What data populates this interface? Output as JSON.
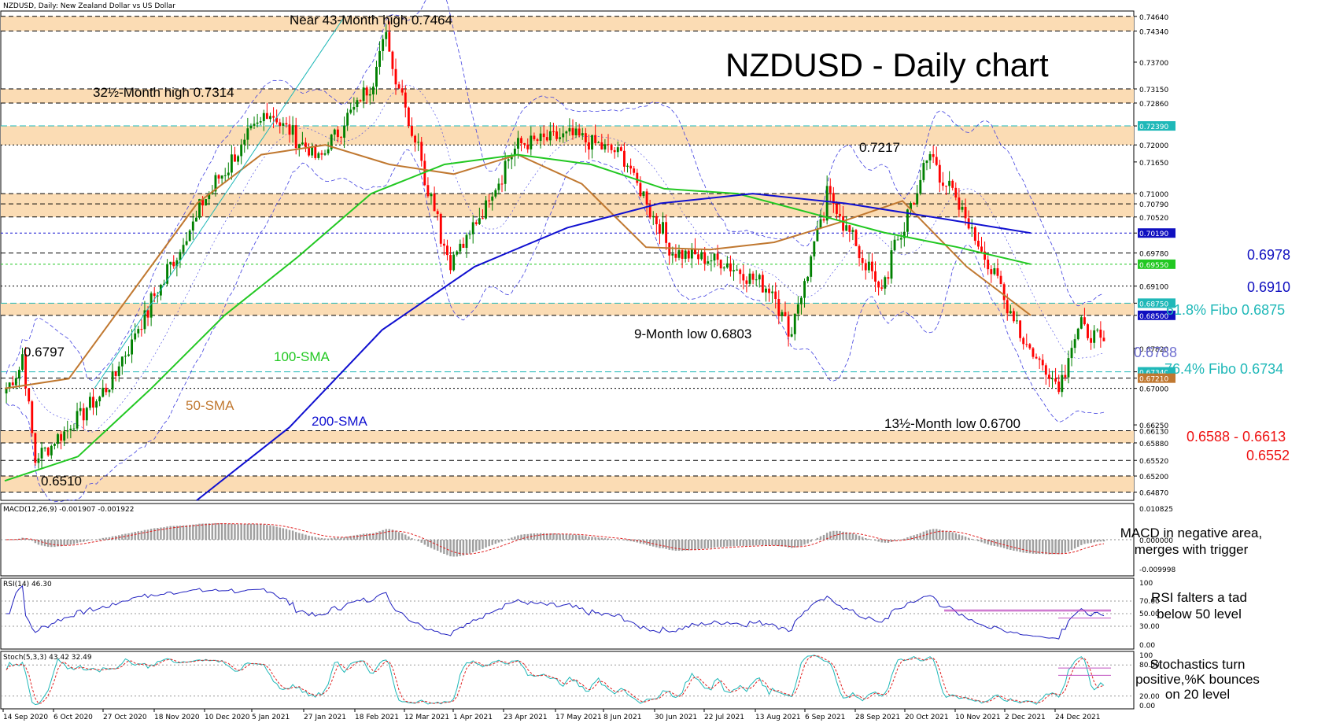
{
  "header": "NZDUSD, Daily:  New Zealand Dollar vs US Dollar",
  "title": "NZDUSD - Daily chart",
  "colors": {
    "orange_zone": "#fbdcb4",
    "bull": "#008000",
    "bear": "#ff0000",
    "sma50": "#c07830",
    "sma100": "#22c822",
    "sma200": "#1010d0",
    "bollinger": "#4040e0",
    "fibo": "#1fb8b8",
    "level_red": "#ee1111",
    "level_blue": "#1010c0"
  },
  "main_panel": {
    "price_labels": [
      "0.74640",
      "0.74340",
      "0.73700",
      "0.73150",
      "0.72860",
      "0.72390",
      "0.72000",
      "0.71650",
      "0.71000",
      "0.70790",
      "0.70520",
      "0.70190",
      "0.69780",
      "0.69550",
      "0.69100",
      "0.68750",
      "0.68500",
      "0.67820",
      "0.67340",
      "0.67210",
      "0.67000",
      "0.66250",
      "0.66130",
      "0.65880",
      "0.65520",
      "0.65200",
      "0.64870"
    ],
    "highlighted_price_labels": [
      {
        "label": "0.72390",
        "color": "#1fb8b8"
      },
      {
        "label": "0.70190",
        "color": "#1010c0"
      },
      {
        "label": "0.69550",
        "color": "#22c822"
      },
      {
        "label": "0.68750",
        "color": "#1fb8b8"
      },
      {
        "label": "0.68500",
        "color": "#1010c0"
      },
      {
        "label": "0.67340",
        "color": "#1fb8b8"
      },
      {
        "label": "0.67210",
        "color": "#c07830"
      }
    ],
    "annotations": {
      "near_high": "Near 43-Month high 0.7464",
      "high_325": "32½-Month high 0.7314",
      "v7217": "0.7217",
      "low_9m": "9-Month low 0.6803",
      "low_135m": "13½-Month low 0.6700",
      "v6797": "0.6797",
      "v6510": "0.6510",
      "sma100": "100-SMA",
      "sma50": "50-SMA",
      "sma200": "200-SMA",
      "r6978": "0.6978",
      "r6910": "0.6910",
      "fibo618": "61.8% Fibo 0.6875",
      "v6788": "0.6788",
      "fibo764": "76.4% Fibo 0.6734",
      "s6588": "0.6588 - 0.6613",
      "s6552": "0.6552"
    }
  },
  "date_labels": [
    "14 Sep 2020",
    "6 Oct 2020",
    "27 Oct 2020",
    "18 Nov 2020",
    "10 Dec 2020",
    "5 Jan 2021",
    "27 Jan 2021",
    "18 Feb 2021",
    "12 Mar 2021",
    "1 Apr 2021",
    "23 Apr 2021",
    "17 May 2021",
    "8 Jun 2021",
    "30 Jun 2021",
    "22 Jul 2021",
    "13 Aug 2021",
    "6 Sep 2021",
    "28 Sep 2021",
    "20 Oct 2021",
    "10 Nov 2021",
    "2 Dec 2021",
    "24 Dec 2021"
  ],
  "macd_panel": {
    "header": "MACD(12,26,9) -0.001907 -0.001922",
    "scale": [
      "0.010825",
      "0.000000",
      "-0.009998"
    ],
    "comment_1": "MACD in negative area,",
    "comment_2": "merges with trigger"
  },
  "rsi_panel": {
    "header": "RSI(14) 46.30",
    "scale": [
      "100",
      "70.00",
      "50.00",
      "30.00",
      "0.00"
    ],
    "comment_1": "RSI falters a tad",
    "comment_2": "below 50 level"
  },
  "stoch_panel": {
    "header": "Stoch(5,3,3) 43.42 32.49",
    "scale": [
      "100",
      "80.00",
      "20.00",
      "0.00"
    ],
    "comment_1": "Stochastics turn",
    "comment_2": "positive,%K bounces",
    "comment_3": "on 20 level"
  },
  "chart_data": {
    "type": "candlestick",
    "title": "NZDUSD - Daily chart",
    "symbol": "NZDUSD",
    "timeframe": "Daily",
    "ylim": [
      0.647,
      0.7475
    ],
    "date_range": [
      "14 Sep 2020",
      "4 Jan 2022"
    ],
    "close_path": [
      {
        "date": "2020-09-14",
        "close": 0.67
      },
      {
        "date": "2020-09-21",
        "close": 0.677
      },
      {
        "date": "2020-09-25",
        "close": 0.655
      },
      {
        "date": "2020-10-06",
        "close": 0.66
      },
      {
        "date": "2020-10-27",
        "close": 0.67
      },
      {
        "date": "2020-11-18",
        "close": 0.69
      },
      {
        "date": "2020-12-10",
        "close": 0.71
      },
      {
        "date": "2021-01-05",
        "close": 0.727
      },
      {
        "date": "2021-01-27",
        "close": 0.717
      },
      {
        "date": "2021-02-18",
        "close": 0.732
      },
      {
        "date": "2021-02-25",
        "close": 0.742
      },
      {
        "date": "2021-03-12",
        "close": 0.718
      },
      {
        "date": "2021-03-25",
        "close": 0.696
      },
      {
        "date": "2021-04-01",
        "close": 0.7
      },
      {
        "date": "2021-04-23",
        "close": 0.72
      },
      {
        "date": "2021-05-17",
        "close": 0.722
      },
      {
        "date": "2021-06-08",
        "close": 0.718
      },
      {
        "date": "2021-06-30",
        "close": 0.698
      },
      {
        "date": "2021-07-22",
        "close": 0.696
      },
      {
        "date": "2021-08-13",
        "close": 0.69
      },
      {
        "date": "2021-08-20",
        "close": 0.681
      },
      {
        "date": "2021-09-06",
        "close": 0.71
      },
      {
        "date": "2021-09-28",
        "close": 0.69
      },
      {
        "date": "2021-10-20",
        "close": 0.718
      },
      {
        "date": "2021-11-10",
        "close": 0.7
      },
      {
        "date": "2021-12-02",
        "close": 0.678
      },
      {
        "date": "2021-12-15",
        "close": 0.671
      },
      {
        "date": "2021-12-24",
        "close": 0.683
      },
      {
        "date": "2022-01-04",
        "close": 0.6788
      }
    ],
    "horizontal_levels": [
      0.7464,
      0.7434,
      0.7315,
      0.7286,
      0.7239,
      0.72,
      0.71,
      0.7079,
      0.7052,
      0.7019,
      0.6978,
      0.6955,
      0.691,
      0.6875,
      0.685,
      0.6734,
      0.6721,
      0.67,
      0.6613,
      0.6588,
      0.6552,
      0.652,
      0.6487
    ],
    "zones": [
      [
        0.7434,
        0.7464
      ],
      [
        0.7286,
        0.7315
      ],
      [
        0.72,
        0.7239
      ],
      [
        0.7052,
        0.71
      ],
      [
        0.685,
        0.6875
      ],
      [
        0.6588,
        0.6613
      ],
      [
        0.6487,
        0.652
      ]
    ],
    "series": [
      {
        "name": "50-SMA",
        "values": [
          0.67,
          0.672,
          0.69,
          0.708,
          0.718,
          0.72,
          0.716,
          0.714,
          0.718,
          0.712,
          0.699,
          0.6985,
          0.7,
          0.704,
          0.7085,
          0.695,
          0.685
        ]
      },
      {
        "name": "100-SMA",
        "values": [
          0.651,
          0.656,
          0.67,
          0.685,
          0.697,
          0.71,
          0.716,
          0.718,
          0.716,
          0.711,
          0.71,
          0.706,
          0.702,
          0.699,
          0.6955
        ]
      },
      {
        "name": "200-SMA",
        "values": [
          0.647,
          0.662,
          0.682,
          0.695,
          0.703,
          0.708,
          0.71,
          0.708,
          0.705,
          0.7019
        ]
      }
    ]
  }
}
